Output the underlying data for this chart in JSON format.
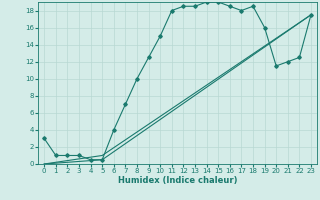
{
  "xlabel": "Humidex (Indice chaleur)",
  "xlim": [
    -0.5,
    23.5
  ],
  "ylim": [
    0,
    19
  ],
  "xticks": [
    0,
    1,
    2,
    3,
    4,
    5,
    6,
    7,
    8,
    9,
    10,
    11,
    12,
    13,
    14,
    15,
    16,
    17,
    18,
    19,
    20,
    21,
    22,
    23
  ],
  "yticks": [
    0,
    2,
    4,
    6,
    8,
    10,
    12,
    14,
    16,
    18
  ],
  "bg_color": "#d4ece8",
  "line_color": "#1a7a6e",
  "grid_color": "#b8d8d3",
  "curve1_x": [
    0,
    1,
    2,
    3,
    4,
    5,
    6,
    7,
    8,
    9,
    10,
    11,
    12,
    13,
    14,
    15,
    16,
    17,
    18,
    19,
    20,
    21,
    22,
    23
  ],
  "curve1_y": [
    3,
    1,
    1,
    1,
    0.5,
    0.5,
    4,
    7,
    10,
    12.5,
    15,
    18,
    18.5,
    18.5,
    19,
    19,
    18.5,
    18,
    18.5,
    16,
    11.5,
    12,
    12.5,
    17.5
  ],
  "curve2_x": [
    0,
    5,
    23
  ],
  "curve2_y": [
    0,
    0.5,
    17.5
  ],
  "curve3_x": [
    0,
    5,
    23
  ],
  "curve3_y": [
    0,
    1,
    17.5
  ],
  "xlabel_fontsize": 6,
  "tick_fontsize": 5
}
